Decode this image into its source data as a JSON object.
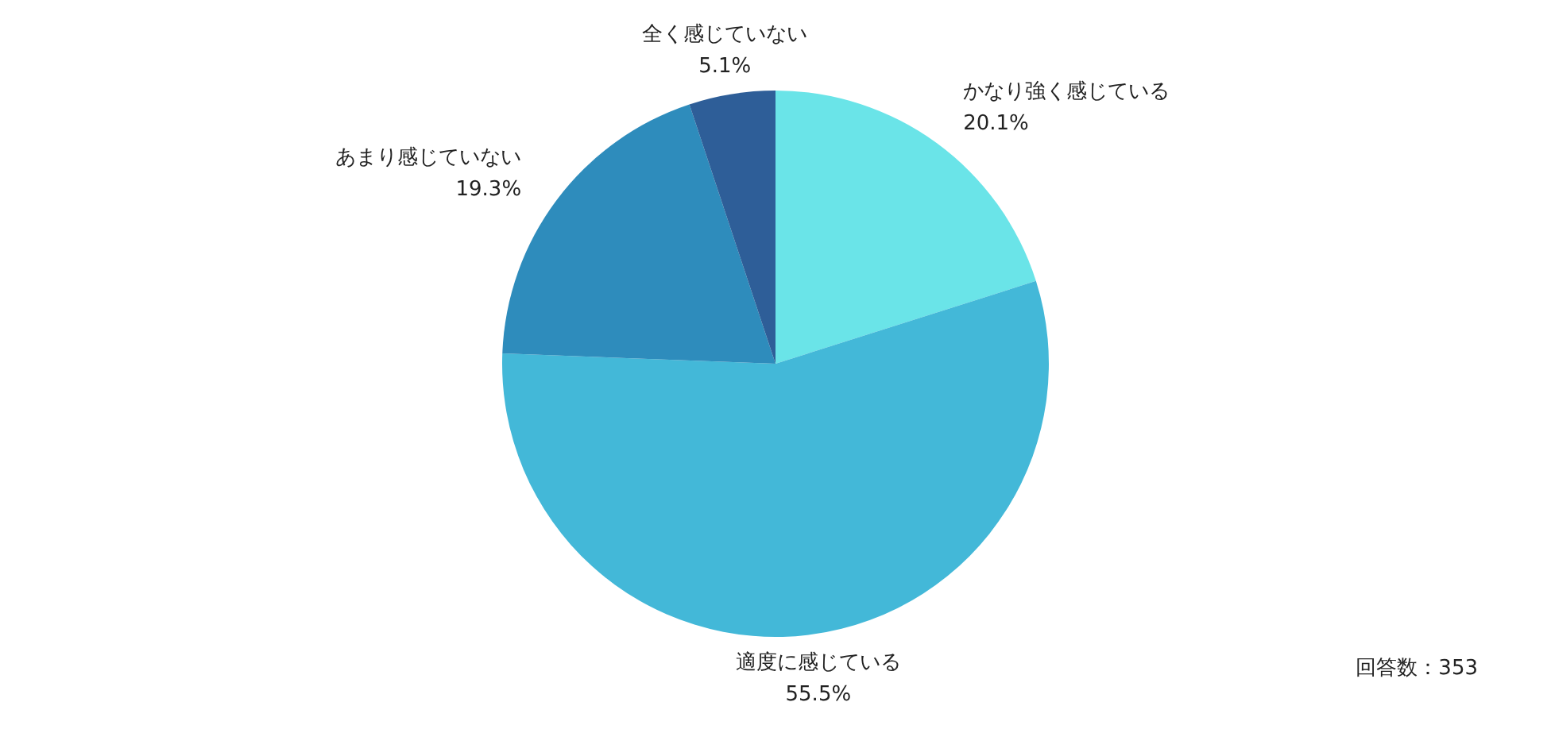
{
  "chart_data": {
    "type": "pie",
    "categories": [
      "かなり強く感じている",
      "適度に感じている",
      "あまり感じていない",
      "全く感じていない"
    ],
    "values": [
      20.1,
      55.5,
      19.3,
      5.1
    ],
    "colors": [
      "#6ae4e8",
      "#43b8d8",
      "#2e8cbc",
      "#2e5e98"
    ],
    "value_labels": [
      "20.1%",
      "55.5%",
      "19.3%",
      "5.1%"
    ],
    "annotations": [
      "回答数：353"
    ]
  }
}
